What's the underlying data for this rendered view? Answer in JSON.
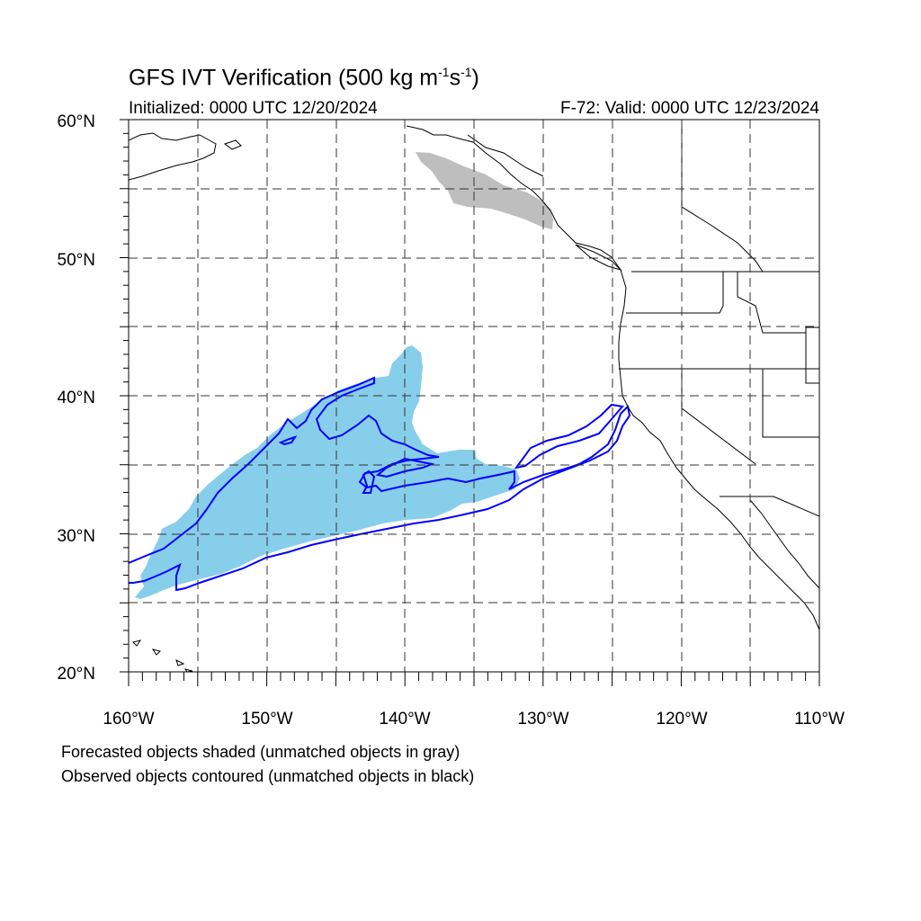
{
  "header": {
    "title": "GFS IVT Verification (500 kg m",
    "title_sup1": "-1",
    "title_mid": "s",
    "title_sup2": "-1",
    "title_end": ")",
    "initialized": "Initialized: 0000 UTC 12/20/2024",
    "valid": "F-72: Valid: 0000 UTC 12/23/2024"
  },
  "map": {
    "lat_labels": [
      "60°N",
      "50°N",
      "40°N",
      "30°N",
      "20°N"
    ],
    "lon_labels": [
      "160°W",
      "150°W",
      "140°W",
      "130°W",
      "120°W",
      "110°W"
    ],
    "extent": {
      "lon_min": -160,
      "lon_max": -110,
      "lat_min": 20,
      "lat_max": 60
    },
    "colors": {
      "forecast_matched": "#87ceeb",
      "forecast_unmatched": "#bebebe",
      "observed_matched": "#0000ff",
      "coastline": "#000000"
    }
  },
  "captions": {
    "line1": "Forecasted objects shaded (unmatched objects in gray)",
    "line2": "Observed objects contoured (unmatched objects in black)"
  }
}
